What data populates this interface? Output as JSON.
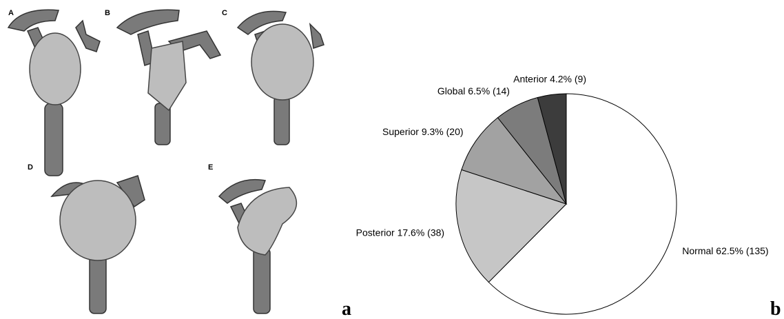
{
  "panels": {
    "labels": [
      "A",
      "B",
      "C",
      "D",
      "E"
    ]
  },
  "figure_labels": [
    "a",
    "b"
  ],
  "chart_data": {
    "type": "pie",
    "categories": [
      "Normal",
      "Posterior",
      "Superior",
      "Global",
      "Anterior"
    ],
    "values": [
      62.5,
      17.6,
      9.3,
      6.5,
      4.2
    ],
    "value_labels": [
      "Normal 62.5% (135)",
      "Posterior 17.6% (38)",
      "Superior 9.3% (20)",
      "Global 6.5% (14)",
      "Anterior 4.2% (9)"
    ],
    "colors": [
      "#ffffff",
      "#c6c6c6",
      "#a2a2a2",
      "#7c7c7c",
      "#3c3c3c"
    ]
  }
}
